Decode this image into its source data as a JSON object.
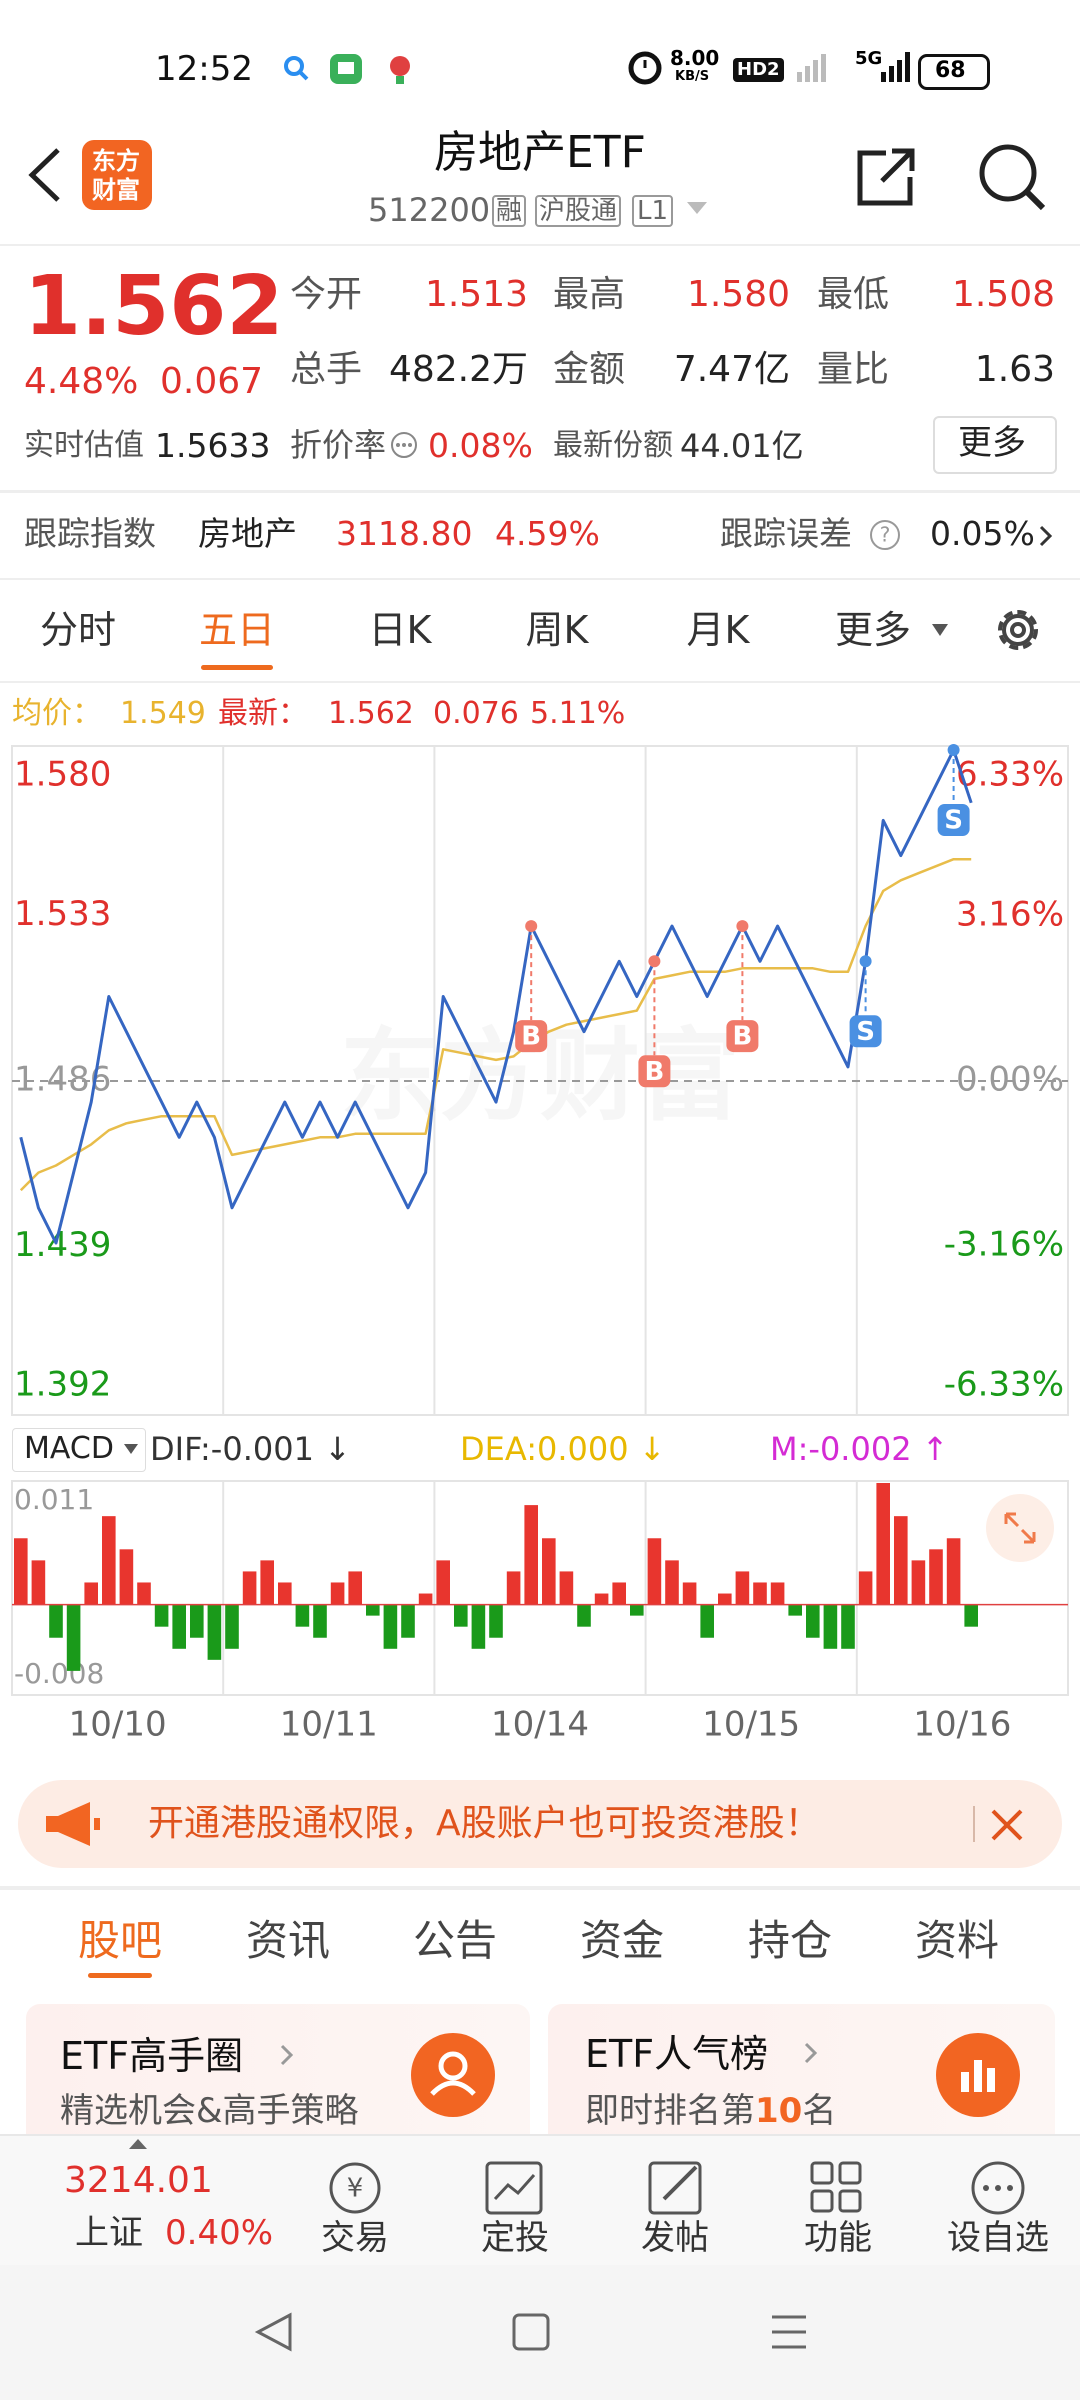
{
  "status_bar": {
    "time": "12:52",
    "net_speed": "8.00",
    "net_unit": "KB/S",
    "hd": "HD2",
    "network": "5G",
    "battery": "68"
  },
  "header": {
    "logo": [
      "东方",
      "财富"
    ],
    "title": "房地产ETF",
    "code": "512200",
    "tags": [
      "融",
      "沪股通",
      "L1"
    ]
  },
  "quote": {
    "price": "1.562",
    "change_pct": "4.48%",
    "change": "0.067",
    "stats": [
      {
        "label": "今开",
        "value": "1.513"
      },
      {
        "label": "最高",
        "value": "1.580"
      },
      {
        "label": "最低",
        "value": "1.508"
      },
      {
        "label": "总手",
        "value": "482.2万"
      },
      {
        "label": "金额",
        "value": "7.47亿"
      },
      {
        "label": "量比",
        "value": "1.63"
      }
    ],
    "estimate_label": "实时估值",
    "estimate": "1.5633",
    "discount_label": "折价率",
    "discount": "0.08%",
    "shares_label": "最新份额",
    "shares": "44.01亿",
    "more": "更多"
  },
  "tracking": {
    "label": "跟踪指数",
    "index": "房地产",
    "index_value": "3118.80",
    "index_change": "4.59%",
    "error_label": "跟踪误差",
    "error": "0.05%"
  },
  "chart_tabs": {
    "items": [
      "分时",
      "五日",
      "日K",
      "周K",
      "月K",
      "更多"
    ],
    "selected": 1
  },
  "chart_data": [
    {
      "type": "line",
      "watermark": "东方财富",
      "x_labels": [
        "10/10",
        "10/11",
        "10/14",
        "10/15",
        "10/16"
      ],
      "latest_info": [
        "1.562",
        "0.076",
        "5.11%"
      ],
      "series": [
        {
          "name": "最新：",
          "color": "#3566c2",
          "values": [
            1.47,
            1.45,
            1.44,
            1.46,
            1.48,
            1.51,
            1.5,
            1.49,
            1.48,
            1.47,
            1.48,
            1.47,
            1.45,
            1.46,
            1.47,
            1.48,
            1.47,
            1.48,
            1.47,
            1.48,
            1.47,
            1.46,
            1.45,
            1.46,
            1.51,
            1.5,
            1.49,
            1.48,
            1.5,
            1.53,
            1.52,
            1.51,
            1.5,
            1.51,
            1.52,
            1.51,
            1.52,
            1.53,
            1.52,
            1.51,
            1.52,
            1.53,
            1.52,
            1.53,
            1.52,
            1.51,
            1.5,
            1.49,
            1.52,
            1.56,
            1.55,
            1.56,
            1.57,
            1.58,
            1.565,
            null,
            null,
            null,
            null,
            null
          ]
        },
        {
          "name": "均价：",
          "color": "#e8bd4a",
          "values": [
            1.455,
            1.46,
            1.462,
            1.465,
            1.468,
            1.472,
            1.474,
            1.475,
            1.476,
            1.476,
            1.476,
            1.476,
            1.465,
            1.466,
            1.467,
            1.468,
            1.469,
            1.47,
            1.47,
            1.471,
            1.471,
            1.471,
            1.471,
            1.471,
            1.495,
            1.494,
            1.493,
            1.492,
            1.493,
            1.497,
            1.5,
            1.502,
            1.503,
            1.504,
            1.505,
            1.506,
            1.515,
            1.516,
            1.517,
            1.517,
            1.517,
            1.518,
            1.518,
            1.518,
            1.518,
            1.518,
            1.517,
            1.517,
            1.53,
            1.54,
            1.543,
            1.545,
            1.547,
            1.549,
            1.549,
            null,
            null,
            null,
            null,
            null
          ]
        }
      ],
      "legend_value": "1.549",
      "trades": [
        "B",
        "B",
        "B",
        "S",
        "S"
      ],
      "ylim": [
        1.392,
        1.58
      ],
      "yticks": [
        {
          "value": 1.58,
          "label": "1.580"
        },
        1.533,
        1.486,
        1.439,
        1.392
      ],
      "y2lim": [
        -6.33,
        6.33
      ],
      "y2ticks": [
        {
          "value": 6.33,
          "label": "6.33%"
        },
        {
          "value": 3.16,
          "label": "3.16%"
        },
        {
          "value": 0,
          "label": "0.00%"
        },
        {
          "value": -3.16,
          "label": "-3.16%"
        },
        {
          "value": -6.33,
          "label": "-6.33%"
        }
      ]
    },
    {
      "type": "bar",
      "indicator": "MACD",
      "legend": [
        {
          "text": "DIF:-0.001 ↓",
          "color": "#333333"
        },
        {
          "text": "DEA:0.000 ↓",
          "color": "#e8b800"
        },
        {
          "text": "M:-0.002 ↑",
          "color": "#d42bd4"
        }
      ],
      "values": [
        0.006,
        0.004,
        -0.003,
        -0.006,
        0.002,
        0.008,
        0.005,
        0.002,
        -0.002,
        -0.004,
        -0.003,
        -0.005,
        -0.004,
        0.003,
        0.004,
        0.002,
        -0.002,
        -0.003,
        0.002,
        0.003,
        -0.001,
        -0.004,
        -0.003,
        0.001,
        0.004,
        -0.002,
        -0.004,
        -0.003,
        0.003,
        0.009,
        0.006,
        0.003,
        -0.002,
        0.001,
        0.002,
        -0.001,
        0.006,
        0.004,
        0.002,
        -0.003,
        0.001,
        0.003,
        0.002,
        0.002,
        -0.001,
        -0.003,
        -0.004,
        -0.004,
        0.003,
        0.011,
        0.008,
        0.004,
        0.005,
        0.006,
        -0.002,
        null,
        null,
        null,
        null,
        null
      ],
      "ylim": [
        -0.008,
        0.011
      ],
      "yticks": [
        0.011,
        -0.008
      ],
      "colors": {
        "up": "#e8352e",
        "down": "#1a9a1a"
      }
    }
  ],
  "banner": {
    "text": "开通港股通权限，A股账户也可投资港股！"
  },
  "content_tabs": {
    "items": [
      "股吧",
      "资讯",
      "公告",
      "资金",
      "持仓",
      "资料"
    ],
    "selected": 0
  },
  "cards": [
    {
      "title": "ETF高手圈",
      "subtitle": "精选机会&高手策略"
    },
    {
      "title": "ETF人气榜",
      "subtitle_parts": [
        "即时排名第",
        "10",
        "名"
      ]
    }
  ],
  "bottom_bar": {
    "index_value": "3214.01",
    "index_name": "上证",
    "index_change": "0.40%",
    "items": [
      "交易",
      "定投",
      "发帖",
      "功能",
      "设自选"
    ]
  }
}
